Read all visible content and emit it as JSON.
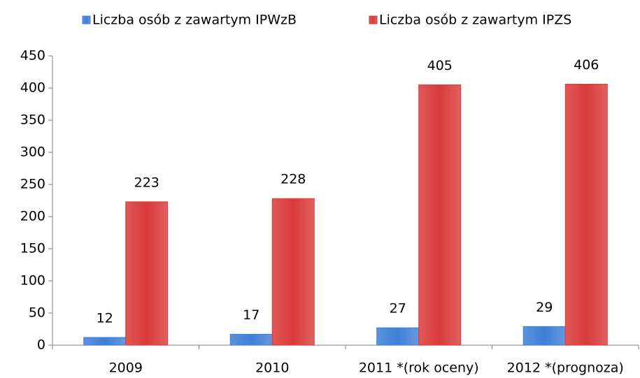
{
  "chart_data": {
    "type": "bar",
    "categories": [
      "2009",
      "2010",
      "2011 *(rok oceny)",
      "2012 *(prognoza)"
    ],
    "series": [
      {
        "name": "Liczba osób z zawartym IPWzB",
        "color": "#3f7fd6",
        "values": [
          12,
          17,
          27,
          29
        ]
      },
      {
        "name": "Liczba osób z zawartym IPZS",
        "color": "#d93a3a",
        "values": [
          223,
          228,
          405,
          406
        ]
      }
    ],
    "ylim": [
      0,
      450
    ],
    "yticks": [
      0,
      50,
      100,
      150,
      200,
      250,
      300,
      350,
      400,
      450
    ],
    "grid": false,
    "legend": "top"
  }
}
